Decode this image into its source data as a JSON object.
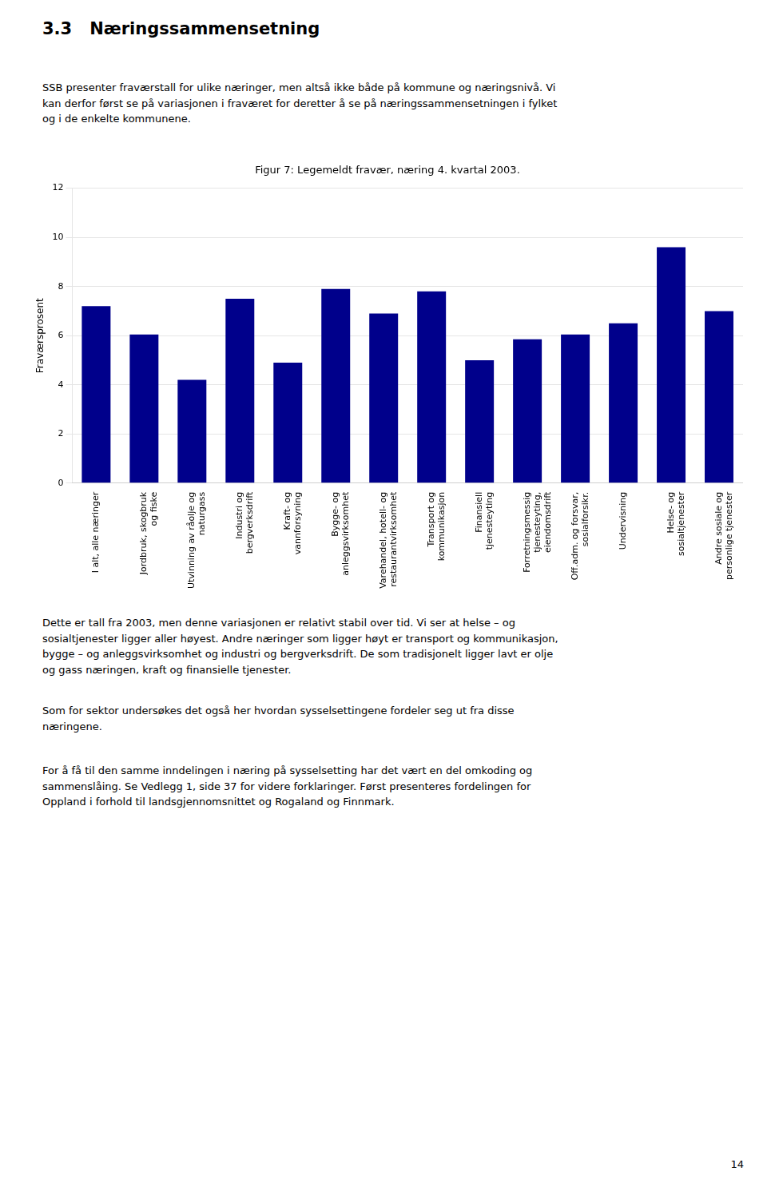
{
  "page_title": "3.3   Næringssammensetning",
  "paragraphs": [
    "SSB presenter fraværstall for ulike næringer, men altså ikke både på kommune og næringsnivå. Vi\nkan derfor først se på variasjonen i fraværet for deretter å se på næringssammensetningen i fylket\nog i de enkelte kommunene.",
    "Dette er tall fra 2003, men denne variasjonen er relativt stabil over tid. Vi ser at helse – og\nsosialtjenester ligger aller høyest. Andre næringer som ligger høyt er transport og kommunikasjon,\nbygge – og anleggsvirksomhet og industri og bergverksdrift. De som tradisjonelt ligger lavt er olje\nog gass næringen, kraft og finansielle tjenester.",
    "Som for sektor undersøkes det også her hvordan sysselsettingene fordeler seg ut fra disse\nnæringene.",
    "For å få til den samme inndelingen i næring på sysselsetting har det vært en del omkoding og\nsammenslåing. Se Vedlegg 1, side 37 for videre forklaringer. Først presenteres fordelingen for\nOppland i forhold til landsgjennomsnittet og Rogaland og Finnmark."
  ],
  "page_number": "14",
  "chart_data": {
    "type": "bar",
    "title": "Figur 7: Legemeldt fravær, næring 4. kvartal 2003.",
    "ylabel": "Fraværsprosent",
    "categories": [
      "I alt, alle næringer",
      "Jordbruk, skogbruk\nog fiske",
      "Utvinning av råolje og\nnaturgass",
      "Industri og\nbergverksdrift",
      "Kraft- og\nvannforsyning",
      "Bygge- og\nanleggsvirksomhet",
      "Varehandel, hotell- og\nrestaurantvirksomhet",
      "Transport og\nkommunikasjon",
      "Finansiell\ntjenesteyting",
      "Forretningsmessig\ntjenesteyting,\neiendomsdrift",
      "Off.adm. og forsvar,\nsosialforsikr.",
      "Undervisning",
      "Helse- og\nsosialtjenester",
      "Andre sosiale og\npersonlige tjenester"
    ],
    "values": [
      7.2,
      6.05,
      4.2,
      7.5,
      4.9,
      7.9,
      6.9,
      7.8,
      5.0,
      5.85,
      6.05,
      6.5,
      9.6,
      7.0
    ],
    "color": "#00008B",
    "ylim": [
      0,
      12
    ],
    "yticks": [
      0,
      2,
      4,
      6,
      8,
      10,
      12
    ],
    "grid": true
  }
}
